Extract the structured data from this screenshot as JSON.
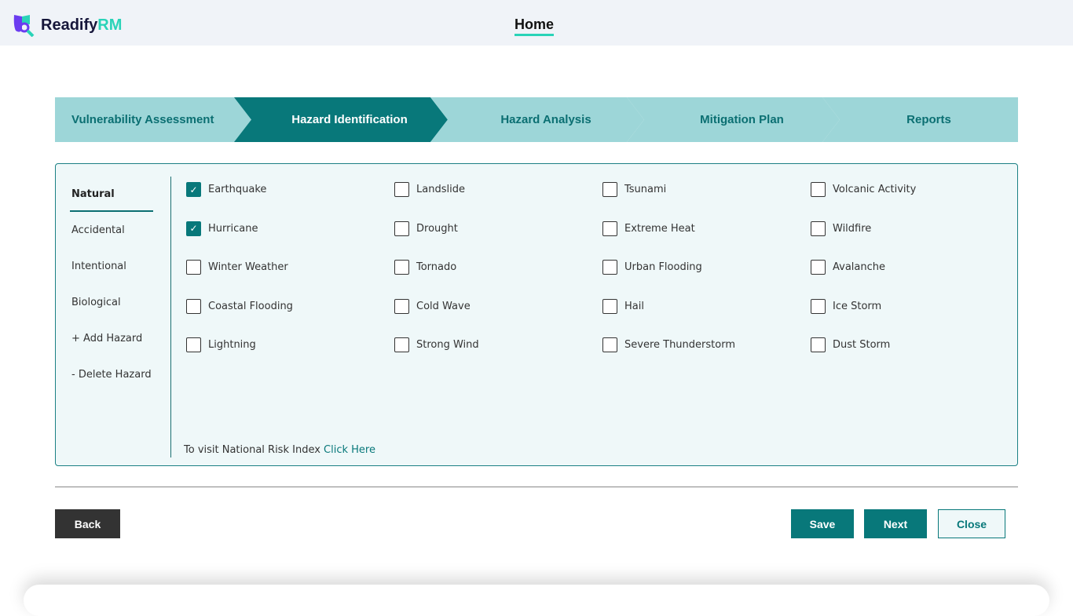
{
  "header": {
    "logo_text": "Readify",
    "logo_accent": "RM",
    "nav_home": "Home"
  },
  "colors": {
    "primary": "#08787a",
    "step_inactive": "#9dd6d8",
    "accent": "#2ad3b8"
  },
  "steps": [
    {
      "label": "Vulnerability Assessment",
      "active": false
    },
    {
      "label": "Hazard Identification",
      "active": true
    },
    {
      "label": "Hazard Analysis",
      "active": false
    },
    {
      "label": "Mitigation Plan",
      "active": false
    },
    {
      "label": "Reports",
      "active": false
    }
  ],
  "sidebar": {
    "items": [
      "Natural",
      "Accidental",
      "Intentional",
      "Biological",
      "+ Add Hazard",
      "- Delete Hazard"
    ],
    "active": "Natural"
  },
  "hazards": [
    {
      "label": "Earthquake",
      "checked": true
    },
    {
      "label": "Landslide",
      "checked": false
    },
    {
      "label": "Tsunami",
      "checked": false
    },
    {
      "label": "Volcanic Activity",
      "checked": false
    },
    {
      "label": "Hurricane",
      "checked": true
    },
    {
      "label": "Drought",
      "checked": false
    },
    {
      "label": "Extreme Heat",
      "checked": false
    },
    {
      "label": "Wildfire",
      "checked": false
    },
    {
      "label": "Winter Weather",
      "checked": false
    },
    {
      "label": "Tornado",
      "checked": false
    },
    {
      "label": "Urban Flooding",
      "checked": false
    },
    {
      "label": "Avalanche",
      "checked": false
    },
    {
      "label": "Coastal Flooding",
      "checked": false
    },
    {
      "label": "Cold Wave",
      "checked": false
    },
    {
      "label": "Hail",
      "checked": false
    },
    {
      "label": "Ice Storm",
      "checked": false
    },
    {
      "label": "Lightning",
      "checked": false
    },
    {
      "label": "Strong Wind",
      "checked": false
    },
    {
      "label": "Severe Thunderstorm",
      "checked": false
    },
    {
      "label": "Dust Storm",
      "checked": false
    }
  ],
  "footnote": {
    "text": "To visit National Risk Index ",
    "link": "Click Here"
  },
  "buttons": {
    "back": "Back",
    "save": "Save",
    "next": "Next",
    "close": "Close"
  }
}
